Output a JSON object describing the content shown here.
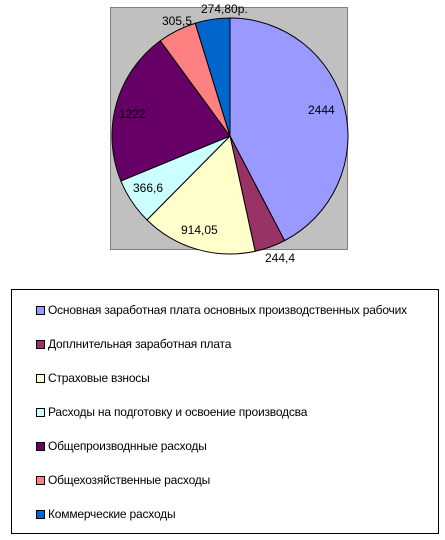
{
  "chart_data": {
    "type": "pie",
    "title": "",
    "start_angle_deg": 0,
    "direction": "clockwise",
    "legend_position": "bottom",
    "slices": [
      {
        "name": "Основная заработная плата основных производственных рабочих",
        "value": 2444,
        "label": "2444",
        "color": "#9999ff"
      },
      {
        "name": "Доплнительная заработная плата",
        "value": 244.4,
        "label": "244,4",
        "color": "#993366"
      },
      {
        "name": "Страховые взносы",
        "value": 914.05,
        "label": "914,05",
        "color": "#ffffcc"
      },
      {
        "name": "Расходы на подготовку и освоение производсва",
        "value": 366.6,
        "label": "366,6",
        "color": "#ccffff"
      },
      {
        "name": "Общепроизводнные расходы",
        "value": 1222,
        "label": "1222",
        "color": "#660066"
      },
      {
        "name": "Общехозяйственные расходы",
        "value": 305.5,
        "label": "305,5",
        "color": "#ff8080"
      },
      {
        "name": "Коммерческие расходы",
        "value": 274.8,
        "label": "274,80р.",
        "color": "#0066cc"
      }
    ]
  }
}
